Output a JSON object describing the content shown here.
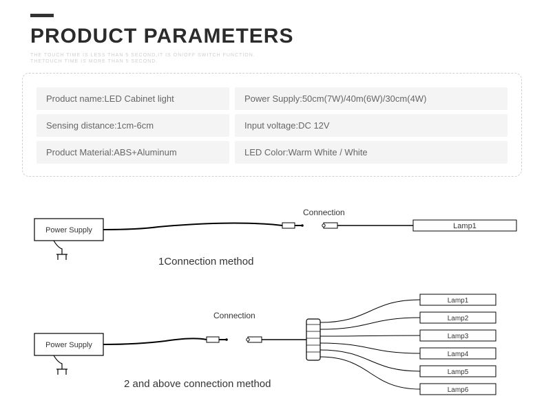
{
  "header": {
    "title": "PRODUCT PARAMETERS",
    "subtext_line1": "THE TOUCH TIME IS LESS THAN 5 SECOND,IT IS ON/OFF SWITCH FUNCTION.",
    "subtext_line2": "THETOUCH TIME IS MORE THAN 5 SECOND."
  },
  "params": {
    "rows": [
      {
        "left_label": "Product name:",
        "left_value": "LED Cabinet light",
        "right_label": "Power Supply:",
        "right_value": "50cm(7W)/40m(6W)/30cm(4W)"
      },
      {
        "left_label": "Sensing distance:",
        "left_value": "1cm-6cm",
        "right_label": "Input voltage:",
        "right_value": "DC 12V"
      },
      {
        "left_label": "Product Material:",
        "left_value": "ABS+Aluminum",
        "right_label": "LED Color:",
        "right_value": "Warm White / White"
      }
    ],
    "style": {
      "bg": "#f4f4f4",
      "text_color": "#666666",
      "font_size": 13,
      "border_color": "#d0d0d0"
    }
  },
  "diagram1": {
    "method_label": "1Connection method",
    "connection_label": "Connection",
    "power_supply_label": "Power Supply",
    "lamp_label": "Lamp1",
    "colors": {
      "stroke": "#000000",
      "fill": "#ffffff",
      "text": "#333333"
    },
    "font_size_small": 11,
    "font_size_label": 15
  },
  "diagram2": {
    "method_label": "2 and above connection method",
    "connection_label": "Connection",
    "power_supply_label": "Power Supply",
    "lamps": [
      "Lamp1",
      "Lamp2",
      "Lamp3",
      "Lamp4",
      "Lamp5",
      "Lamp6"
    ],
    "colors": {
      "stroke": "#000000",
      "fill": "#ffffff",
      "text": "#333333"
    },
    "font_size_small": 11,
    "font_size_label": 15,
    "lamp_box": {
      "width": 110,
      "height": 16,
      "gap": 26
    }
  }
}
